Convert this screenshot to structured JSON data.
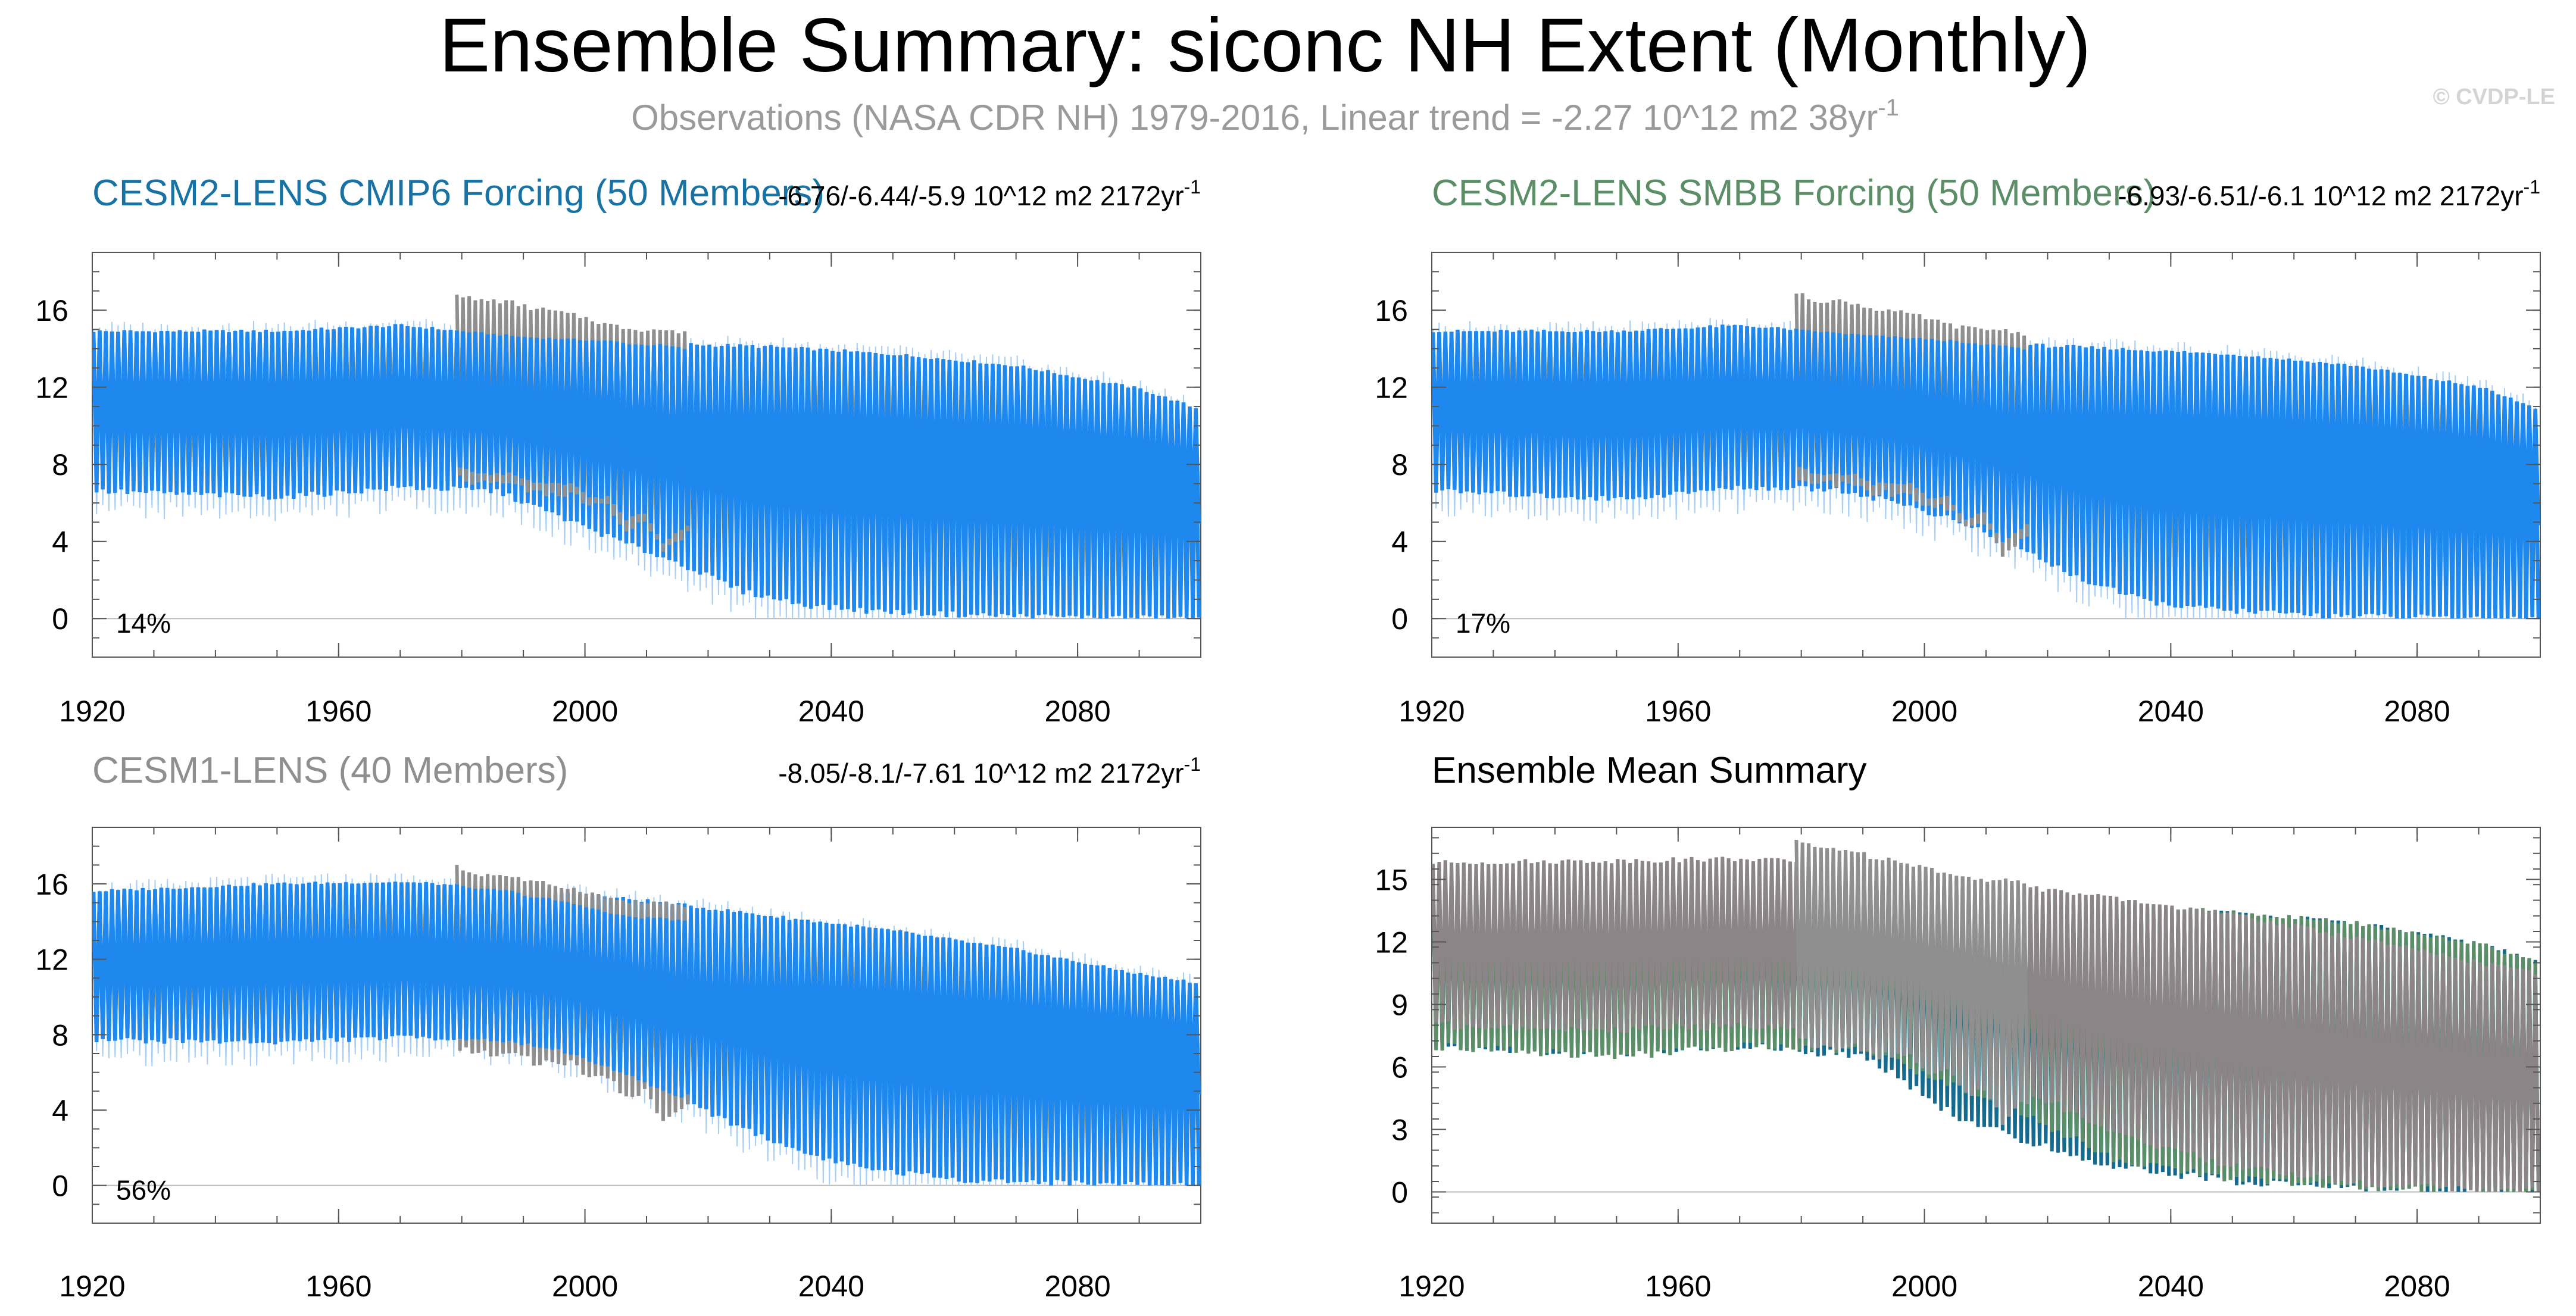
{
  "figure": {
    "title": "Ensemble Summary: siconc NH Extent (Monthly)",
    "subtitle_main": "Observations (NASA CDR NH) 1979-2016, Linear trend = -2.27 10^12 m2 38yr",
    "subtitle_sup": "-1",
    "copyright": "© CVDP-LE"
  },
  "colors": {
    "cmip6": "#1f88ee",
    "cmip6_title": "#1872a3",
    "smbb_title": "#5b8d66",
    "cesm1_title": "#8f8f8f",
    "obs": "#8f8f8f",
    "mean_cmip6": "#156a8d",
    "mean_smbb": "#5b8d66",
    "mean_cesm1": "#8b8587",
    "axis": "#555555",
    "zero_line": "#bbbbbb"
  },
  "chart_data": [
    {
      "type": "line",
      "panel": "top-left",
      "title": "CESM2-LENS CMIP6 Forcing (50 Members)",
      "trend_text": "-6.76/-6.44/-5.9 10^12 m2 2172yr",
      "trend_sup": "-1",
      "percent_label": "14%",
      "xlim": [
        1920,
        2100
      ],
      "ylim": [
        -2,
        19
      ],
      "xticks": [
        1920,
        1960,
        2000,
        2040,
        2080
      ],
      "yticks": [
        0,
        4,
        8,
        12,
        16
      ],
      "series": [
        {
          "name": "ensemble_max",
          "x": [
            1920,
            1950,
            1970,
            1990,
            2010,
            2030,
            2050,
            2070,
            2090,
            2100
          ],
          "y": [
            14.9,
            14.9,
            15.2,
            14.6,
            14.3,
            14.1,
            13.7,
            13.1,
            11.9,
            10.8
          ]
        },
        {
          "name": "ensemble_min",
          "x": [
            1920,
            1950,
            1970,
            1985,
            1995,
            2005,
            2015,
            2025,
            2035,
            2045,
            2060,
            2080,
            2100
          ],
          "y": [
            6.6,
            6.3,
            6.8,
            6.6,
            5.3,
            4.0,
            2.8,
            1.4,
            0.7,
            0.4,
            0.2,
            0.05,
            0.0
          ]
        },
        {
          "name": "observations",
          "x": [
            1979,
            1982,
            1985,
            1988,
            1991,
            1994,
            1997,
            2000,
            2003,
            2006,
            2009,
            2012,
            2016
          ],
          "max": [
            16.9,
            16.5,
            16.5,
            16.4,
            16.1,
            16.0,
            15.8,
            15.6,
            15.3,
            15.1,
            15.0,
            15.0,
            14.8
          ],
          "min": [
            7.3,
            7.0,
            7.0,
            7.0,
            6.5,
            6.5,
            6.5,
            5.8,
            5.8,
            4.6,
            5.0,
            3.4,
            4.4
          ]
        }
      ]
    },
    {
      "type": "line",
      "panel": "top-right",
      "title": "CESM2-LENS SMBB Forcing (50 Members)",
      "trend_text": "-6.93/-6.51/-6.1 10^12 m2 2172yr",
      "trend_sup": "-1",
      "percent_label": "17%",
      "xlim": [
        1920,
        2100
      ],
      "ylim": [
        -2,
        19
      ],
      "xticks": [
        1920,
        1960,
        2000,
        2040,
        2080
      ],
      "yticks": [
        0,
        4,
        8,
        12,
        16
      ],
      "series": [
        {
          "name": "ensemble_max",
          "x": [
            1920,
            1950,
            1970,
            1990,
            2010,
            2030,
            2050,
            2070,
            2090,
            2100
          ],
          "y": [
            14.9,
            14.9,
            15.2,
            14.7,
            14.3,
            14.0,
            13.7,
            13.1,
            12.0,
            10.8
          ]
        },
        {
          "name": "ensemble_min",
          "x": [
            1920,
            1950,
            1970,
            1985,
            1995,
            2005,
            2015,
            2025,
            2035,
            2045,
            2060,
            2080,
            2100
          ],
          "y": [
            6.6,
            6.2,
            6.8,
            6.7,
            6.0,
            5.0,
            3.6,
            2.0,
            0.9,
            0.5,
            0.2,
            0.05,
            0.0
          ]
        },
        {
          "name": "observations",
          "x": [
            1979,
            1982,
            1985,
            1988,
            1991,
            1994,
            1997,
            2000,
            2003,
            2006,
            2009,
            2012,
            2016
          ],
          "max": [
            16.9,
            16.5,
            16.5,
            16.4,
            16.1,
            16.0,
            15.8,
            15.6,
            15.3,
            15.1,
            15.0,
            15.0,
            14.8
          ],
          "min": [
            7.3,
            7.0,
            7.0,
            7.0,
            6.5,
            6.5,
            6.5,
            5.8,
            5.8,
            4.6,
            5.0,
            3.4,
            4.4
          ]
        }
      ]
    },
    {
      "type": "line",
      "panel": "bottom-left",
      "title": "CESM1-LENS (40 Members)",
      "trend_text": "-8.05/-8.1/-7.61 10^12 m2 2172yr",
      "trend_sup": "-1",
      "percent_label": "56%",
      "xlim": [
        1920,
        2100
      ],
      "ylim": [
        -2,
        19
      ],
      "xticks": [
        1920,
        1960,
        2000,
        2040,
        2080
      ],
      "yticks": [
        0,
        4,
        8,
        12,
        16
      ],
      "series": [
        {
          "name": "ensemble_max",
          "x": [
            1920,
            1950,
            1970,
            1990,
            2010,
            2030,
            2050,
            2070,
            2090,
            2100
          ],
          "y": [
            15.6,
            16.0,
            16.1,
            15.7,
            15.1,
            14.3,
            13.5,
            12.5,
            11.2,
            10.7
          ]
        },
        {
          "name": "ensemble_min",
          "x": [
            1920,
            1950,
            1970,
            1985,
            1995,
            2005,
            2015,
            2025,
            2035,
            2045,
            2060,
            2080,
            2100
          ],
          "y": [
            7.7,
            7.6,
            7.9,
            7.7,
            7.2,
            6.0,
            4.6,
            3.0,
            1.7,
            0.9,
            0.3,
            0.1,
            0.0
          ]
        },
        {
          "name": "observations",
          "x": [
            1979,
            1982,
            1985,
            1988,
            1991,
            1994,
            1997,
            2000,
            2003,
            2006,
            2009,
            2012,
            2016
          ],
          "max": [
            16.9,
            16.5,
            16.5,
            16.4,
            16.1,
            16.0,
            15.8,
            15.6,
            15.3,
            15.1,
            15.0,
            15.0,
            14.8
          ],
          "min": [
            7.3,
            7.0,
            7.0,
            7.0,
            6.5,
            6.5,
            6.5,
            5.8,
            5.8,
            4.6,
            5.0,
            3.4,
            4.4
          ]
        }
      ]
    },
    {
      "type": "line",
      "panel": "bottom-right",
      "title": "Ensemble Mean Summary",
      "xlim": [
        1920,
        2100
      ],
      "ylim": [
        -1.5,
        17.5
      ],
      "xticks": [
        1920,
        1960,
        2000,
        2040,
        2080
      ],
      "yticks": [
        0,
        3,
        6,
        9,
        12,
        15
      ],
      "series": [
        {
          "name": "CESM2-LENS CMIP6 Forcing mean",
          "x": [
            1920,
            1950,
            1970,
            1990,
            2005,
            2015,
            2030,
            2050,
            2070,
            2090,
            2100
          ],
          "max": [
            15.0,
            14.9,
            15.1,
            14.7,
            14.4,
            14.2,
            13.8,
            13.4,
            12.9,
            11.9,
            11.0
          ],
          "min": [
            7.0,
            6.6,
            7.0,
            6.5,
            3.5,
            2.5,
            1.2,
            0.5,
            0.2,
            0.1,
            0.0
          ]
        },
        {
          "name": "CESM2-LENS SMBB Forcing mean",
          "x": [
            1920,
            1950,
            1970,
            1990,
            2005,
            2015,
            2030,
            2050,
            2070,
            2090,
            2100
          ],
          "max": [
            15.0,
            14.9,
            15.1,
            14.7,
            14.4,
            14.2,
            13.8,
            13.4,
            12.9,
            11.9,
            11.0
          ],
          "min": [
            7.0,
            6.5,
            7.0,
            6.8,
            5.0,
            3.8,
            1.6,
            0.6,
            0.2,
            0.1,
            0.0
          ]
        },
        {
          "name": "CESM1-LENS mean",
          "x": [
            1920,
            1950,
            1970,
            1990,
            2005,
            2015,
            2030,
            2050,
            2070,
            2090,
            2100
          ],
          "max": [
            15.8,
            15.9,
            16.0,
            15.7,
            15.1,
            14.7,
            14.1,
            13.3,
            12.2,
            11.0,
            10.5
          ],
          "min": [
            8.0,
            7.8,
            8.0,
            7.6,
            6.5,
            5.0,
            2.8,
            1.2,
            0.4,
            0.1,
            0.0
          ]
        },
        {
          "name": "observations",
          "x": [
            1979,
            1982,
            1985,
            1988,
            1991,
            1994,
            1997,
            2000,
            2003,
            2006,
            2009,
            2012,
            2016
          ],
          "max": [
            16.9,
            16.5,
            16.5,
            16.4,
            16.1,
            16.0,
            15.8,
            15.6,
            15.3,
            15.1,
            15.0,
            15.0,
            14.8
          ],
          "min": [
            7.3,
            7.0,
            7.0,
            7.0,
            6.5,
            6.5,
            6.5,
            5.8,
            5.8,
            4.6,
            5.0,
            3.4,
            4.4
          ]
        }
      ]
    }
  ]
}
